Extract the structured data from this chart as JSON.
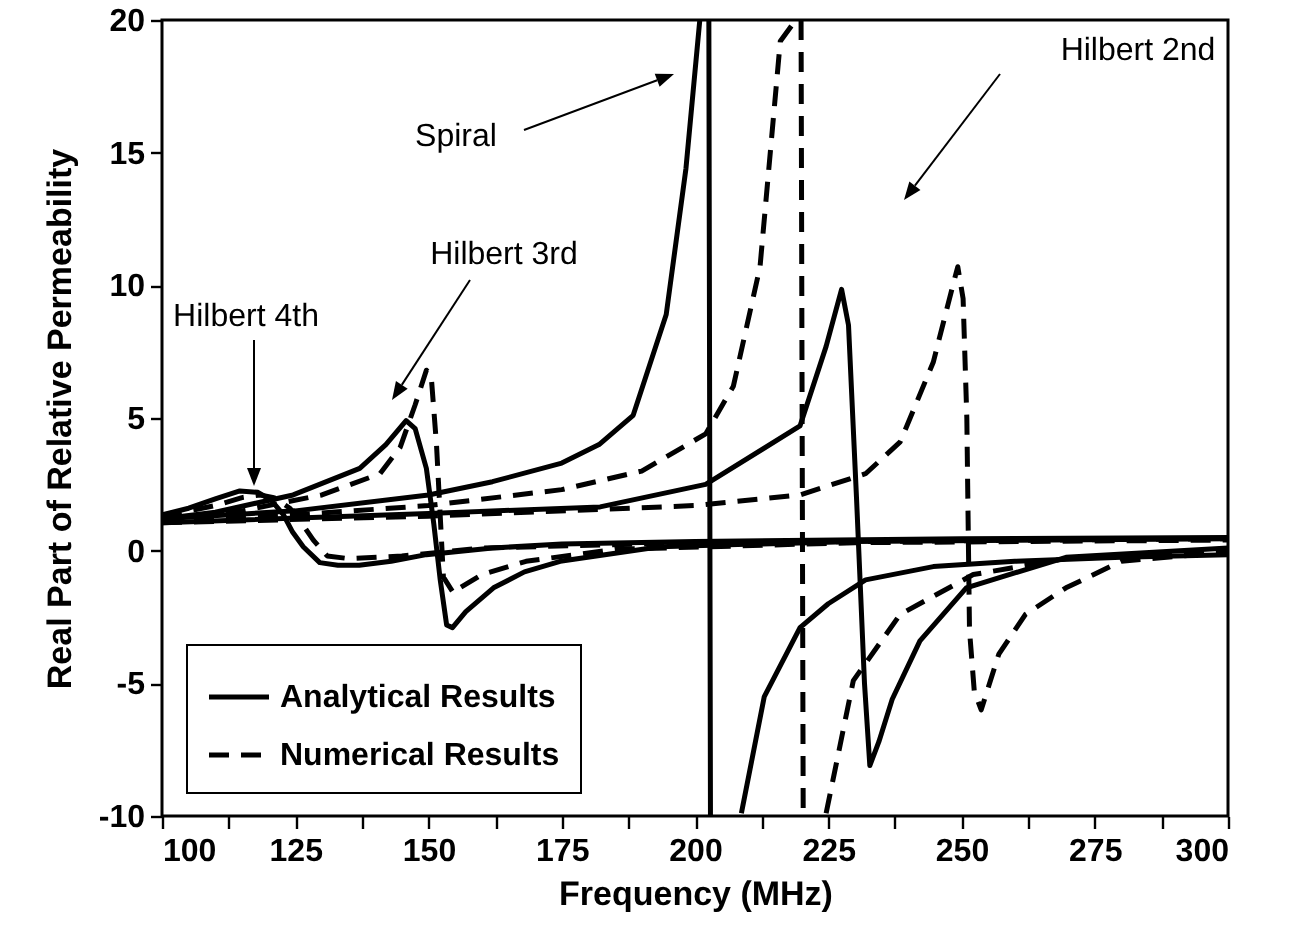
{
  "chart_data": {
    "type": "line",
    "xlabel": "Frequency (MHz)",
    "ylabel": "Real Part of Relative Permeability",
    "xlim": [
      100,
      300
    ],
    "ylim": [
      -10,
      20
    ],
    "xticks": [
      100,
      {
        "value": 112.5,
        "label": null
      },
      125,
      {
        "value": 137.5,
        "label": null
      },
      150,
      {
        "value": 162.5,
        "label": null
      },
      175,
      {
        "value": 187.5,
        "label": null
      },
      200,
      {
        "value": 212.5,
        "label": null
      },
      225,
      {
        "value": 237.5,
        "label": null
      },
      250,
      {
        "value": 262.5,
        "label": null
      },
      275,
      {
        "value": 287.5,
        "label": null
      },
      300
    ],
    "yticks": [
      -10,
      -5,
      0,
      5,
      10,
      15,
      20
    ],
    "legend": "bottom left",
    "series": [
      {
        "name": "Analytical Results",
        "color": "#000000",
        "line_style": "solid",
        "x": [
          100,
          105,
          110,
          114.6,
          118,
          120.5,
          122.8,
          124.5,
          126.5,
          129.6,
          133,
          137,
          143,
          149.6,
          162,
          175,
          200,
          250,
          300
        ],
        "values": [
          1.35,
          1.6,
          1.95,
          2.25,
          2.2,
          1.9,
          1.35,
          0.7,
          0.15,
          -0.45,
          -0.55,
          -0.55,
          -0.4,
          -0.15,
          0.1,
          0.25,
          0.35,
          0.45,
          0.5
        ]
      },
      {
        "name": "Numerical Results",
        "color": "#000000",
        "line_style": "dashed",
        "x": [
          100,
          110,
          115,
          118.4,
          121,
          124,
          126,
          128.4,
          131,
          135,
          145,
          160,
          200,
          300
        ],
        "values": [
          1.3,
          1.7,
          2.0,
          2.1,
          2.0,
          1.6,
          1.1,
          0.4,
          -0.2,
          -0.3,
          -0.2,
          0.1,
          0.3,
          0.45
        ]
      },
      {
        "color": "#000000",
        "line_style": "solid",
        "x": [
          100,
          110,
          124.6,
          137.1,
          142,
          145.8,
          147.5,
          149.6,
          151,
          152.2,
          153.4,
          154.5,
          157,
          162.2,
          168,
          174.7,
          193.4,
          230,
          300
        ],
        "values": [
          1.2,
          1.45,
          2.1,
          3.1,
          4.0,
          4.9,
          4.6,
          3.1,
          1.0,
          -1.1,
          -2.8,
          -2.9,
          -2.3,
          -1.4,
          -0.8,
          -0.4,
          0.15,
          0.35,
          0.45
        ]
      },
      {
        "color": "#000000",
        "line_style": "dashed",
        "x": [
          100,
          115,
          130,
          140.9,
          144.7,
          147.5,
          149.6,
          150.5,
          151.5,
          152.8,
          154.7,
          155.9,
          160,
          168.3,
          185,
          230,
          300
        ],
        "values": [
          1.2,
          1.5,
          2.1,
          2.9,
          3.9,
          5.5,
          6.8,
          6.6,
          4.0,
          -1.0,
          -1.6,
          -1.4,
          -0.9,
          -0.4,
          0.05,
          0.3,
          0.4
        ]
      },
      {
        "color": "#000000",
        "line_style": "solid",
        "x": [
          100,
          125,
          150,
          162,
          175,
          182,
          188.4,
          194.6,
          198.3,
          200.9,
          201.8,
          202.6,
          202.9,
          205.5,
          208.7,
          213,
          219.7,
          225,
          232,
          244.7,
          260,
          280,
          300
        ],
        "values": [
          1.2,
          1.5,
          2.1,
          2.6,
          3.3,
          4.0,
          5.1,
          8.9,
          14.4,
          20,
          null,
          20,
          -10,
          null,
          -9.9,
          -5.5,
          -2.9,
          -2.0,
          -1.1,
          -0.6,
          -0.4,
          -0.25,
          -0.15
        ]
      },
      {
        "color": "#000000",
        "line_style": "dashed",
        "x": [
          100,
          125,
          150,
          175,
          190,
          202,
          207.2,
          212.2,
          216,
          218.9,
          219.5,
          219.9,
          220.3,
          222,
          224.6,
          229.7,
          238.5,
          252.2,
          269.6,
          300
        ],
        "values": [
          1.15,
          1.35,
          1.7,
          2.3,
          3.0,
          4.4,
          6.2,
          10.7,
          19.2,
          20,
          null,
          20,
          -10,
          null,
          -9.9,
          -4.9,
          -2.4,
          -0.9,
          -0.3,
          -0.05
        ]
      },
      {
        "color": "#000000",
        "line_style": "solid",
        "x": [
          100,
          150,
          182.2,
          202,
          219.7,
          224.6,
          227.5,
          228.8,
          230.3,
          231.8,
          232.8,
          234.5,
          237,
          242.2,
          250.9,
          269.6,
          300
        ],
        "values": [
          1.05,
          1.4,
          1.65,
          2.5,
          4.7,
          7.7,
          9.85,
          8.5,
          2.0,
          -5.0,
          -8.1,
          -7.2,
          -5.6,
          -3.4,
          -1.4,
          -0.25,
          0.1
        ]
      },
      {
        "color": "#000000",
        "line_style": "dashed",
        "x": [
          100,
          150,
          200,
          219.7,
          232,
          238.5,
          244.7,
          248,
          249.3,
          250.3,
          251,
          251.5,
          252.4,
          253.7,
          257,
          262,
          269.6,
          280,
          300
        ],
        "values": [
          1.05,
          1.3,
          1.7,
          2.1,
          2.9,
          4.1,
          7.1,
          9.7,
          10.7,
          9.5,
          5.0,
          -3.0,
          -5.3,
          -6.0,
          -3.9,
          -2.4,
          -1.4,
          -0.4,
          -0.05
        ]
      }
    ],
    "annotations": [
      "Hilbert 4th",
      "Hilbert 3rd",
      "Spiral",
      "Hilbert 2nd"
    ]
  }
}
